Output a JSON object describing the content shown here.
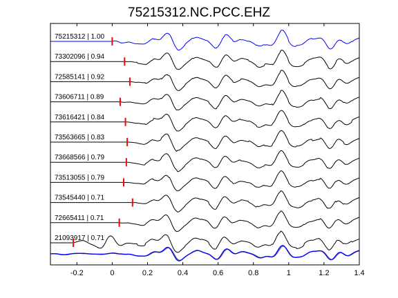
{
  "chart_data": {
    "type": "line",
    "title": "75215312.NC.PCC.EHZ",
    "xlabel": "",
    "ylabel": "",
    "xlim": [
      -0.35,
      1.4
    ],
    "x_ticks": [
      -0.2,
      0,
      0.2,
      0.4,
      0.6,
      0.8,
      1,
      1.2,
      1.4
    ],
    "x_tick_labels": [
      "-0.2",
      "0",
      "0.2",
      "0.4",
      "0.6",
      "0.8",
      "1",
      "1.2",
      "1.4"
    ],
    "grid": false,
    "colors": {
      "reference_trace": "#0000ff",
      "trace": "#000000",
      "pick_marker": "#ff0000",
      "stack_trace": "#808080"
    },
    "series": [
      {
        "name": "75215312 | 1.00",
        "label": "75215312 | 1.00",
        "pick_x": 0.0,
        "reference": true
      },
      {
        "name": "73302096 | 0.94",
        "label": "73302096 | 0.94",
        "pick_x": 0.07
      },
      {
        "name": "72585141 | 0.92",
        "label": "72585141 | 0.92",
        "pick_x": 0.1
      },
      {
        "name": "73606711 | 0.89",
        "label": "73606711 | 0.89",
        "pick_x": 0.045
      },
      {
        "name": "73616421 | 0.84",
        "label": "73616421 | 0.84",
        "pick_x": 0.075
      },
      {
        "name": "73563665 | 0.83",
        "label": "73563665 | 0.83",
        "pick_x": 0.085
      },
      {
        "name": "73668566 | 0.79",
        "label": "73668566 | 0.79",
        "pick_x": 0.08
      },
      {
        "name": "73513055 | 0.79",
        "label": "73513055 | 0.79",
        "pick_x": 0.065
      },
      {
        "name": "73545440 | 0.71",
        "label": "73545440 | 0.71",
        "pick_x": 0.115
      },
      {
        "name": "72665411 | 0.71",
        "label": "72665411 | 0.71",
        "pick_x": 0.04
      },
      {
        "name": "21093917 | 0.71",
        "label": "21093917 | 0.71",
        "pick_x": -0.22
      }
    ]
  }
}
